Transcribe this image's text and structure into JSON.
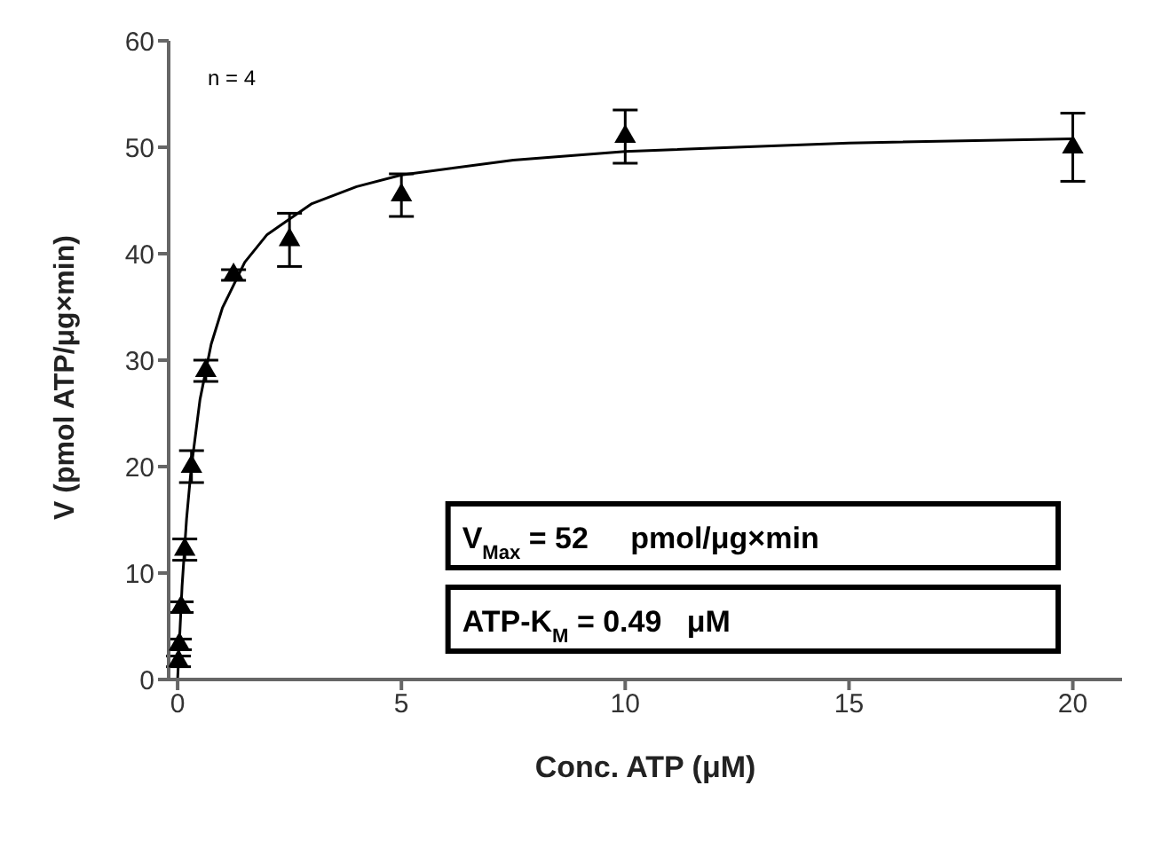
{
  "chart_data": {
    "type": "scatter",
    "xlabel": "Conc. ATP (μM)",
    "ylabel": "V (pmol ATP/μg×min)",
    "xlim": [
      -0.2,
      21.1
    ],
    "xticks": [
      0,
      5,
      10,
      15,
      20
    ],
    "ylim": [
      0,
      60
    ],
    "yticks": [
      0,
      10,
      20,
      30,
      40,
      50,
      60
    ],
    "grid": false,
    "legend": false,
    "annotations": [
      "n = 4",
      "V$_{Max}$ = 52     pmol/μg×min",
      "ATP-K$_{M}$ = 0.49   μM"
    ],
    "series": [
      {
        "color": "#000000",
        "marker": "triangle",
        "x": [
          0.02,
          0.04,
          0.08,
          0.16,
          0.31,
          0.63,
          1.25,
          2.5,
          5,
          10,
          20
        ],
        "values": [
          1.7,
          3.3,
          6.8,
          12.2,
          20,
          29,
          38,
          41.3,
          45.5,
          51,
          50
        ],
        "errors": [
          0.5,
          0.5,
          0.5,
          1,
          1.5,
          1,
          0.5,
          2.5,
          2,
          2.5,
          3.2
        ]
      },
      {
        "type": "line",
        "color": "#000000",
        "marker": "none",
        "x": [
          0,
          0.1,
          0.2,
          0.3,
          0.5,
          0.75,
          1,
          1.5,
          2,
          3,
          4,
          5,
          7.5,
          10,
          15,
          20
        ],
        "values": [
          0,
          8.8,
          15.1,
          19.7,
          26.3,
          31.5,
          34.9,
          39.2,
          41.8,
          44.7,
          46.3,
          47.4,
          48.8,
          49.6,
          50.4,
          50.8
        ]
      }
    ]
  }
}
